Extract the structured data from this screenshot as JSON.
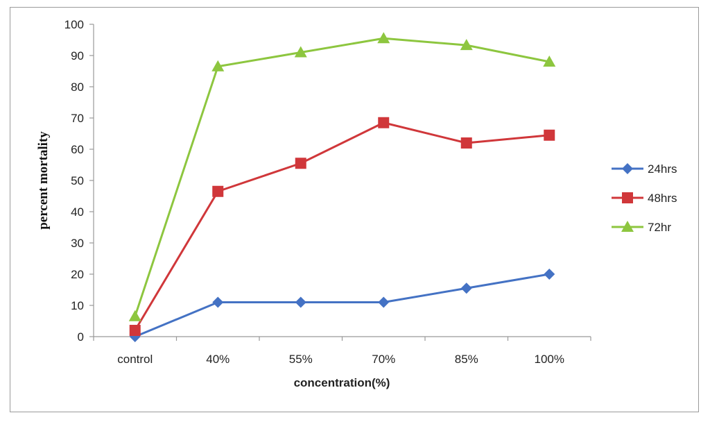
{
  "chart_data": {
    "type": "line",
    "title": "",
    "xlabel": "concentration(%)",
    "ylabel": "percent mortality",
    "categories": [
      "control",
      "40%",
      "55%",
      "70%",
      "85%",
      "100%"
    ],
    "ylim": [
      0,
      100
    ],
    "yticks": [
      0,
      10,
      20,
      30,
      40,
      50,
      60,
      70,
      80,
      90,
      100
    ],
    "grid": false,
    "legend_position": "right",
    "series": [
      {
        "name": "24hrs",
        "color": "#4472C4",
        "marker": "diamond",
        "values": [
          0,
          11,
          11,
          11,
          15.5,
          20
        ]
      },
      {
        "name": "48hrs",
        "color": "#D0373A",
        "marker": "square",
        "values": [
          2,
          46.5,
          55.5,
          68.5,
          62,
          64.5
        ]
      },
      {
        "name": "72hr",
        "color": "#8DC63F",
        "marker": "triangle",
        "values": [
          6.5,
          86.5,
          91,
          95.5,
          93.3,
          88
        ]
      }
    ]
  }
}
